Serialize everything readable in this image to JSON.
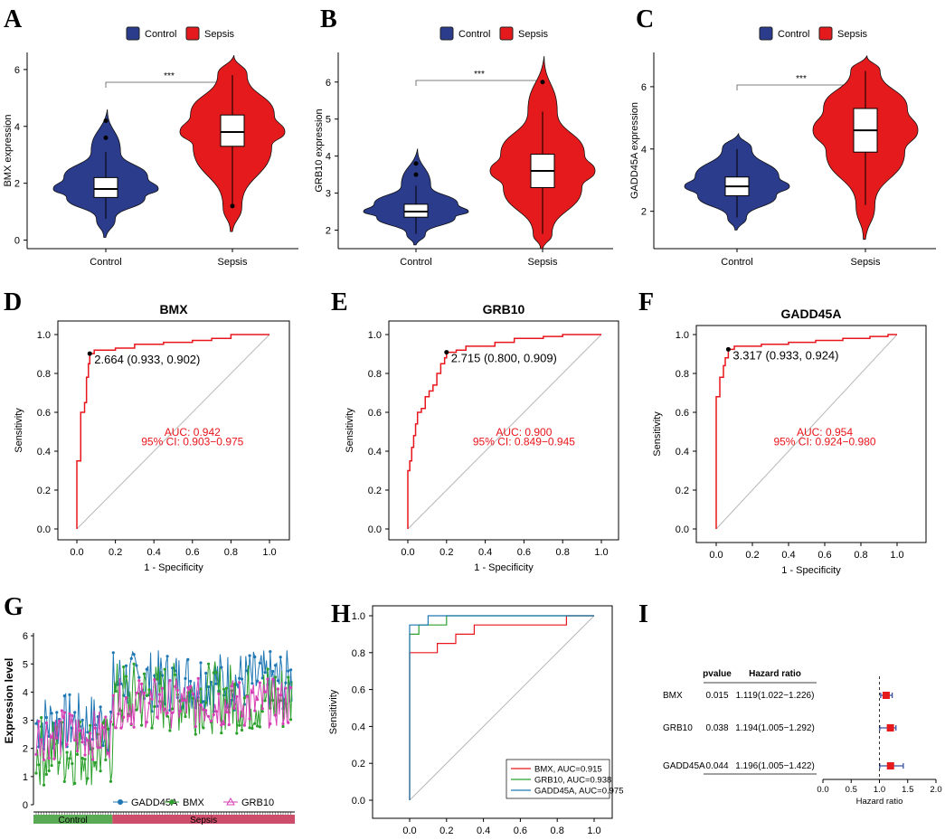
{
  "colors": {
    "control": "#2b3c8c",
    "sepsis": "#e41a1c",
    "roc": "#e8161c",
    "diag": "#b8b8b8",
    "green": "#2ca02c",
    "blue": "#1f77b4",
    "pink": "#d63fb4",
    "ctrlbar": "#5aaa55",
    "sepbar": "#cc4e6a"
  },
  "panels": [
    "A",
    "B",
    "C",
    "D",
    "E",
    "F",
    "G",
    "H",
    "I"
  ],
  "violin": [
    {
      "ylabel": "BMX expression",
      "groups": [
        "Control",
        "Sepsis"
      ],
      "legend": [
        "Control",
        "Sepsis"
      ],
      "sig": "***",
      "yticks": [
        0,
        2,
        4,
        6
      ],
      "ymin": -0.3,
      "ymax": 6.6,
      "control": {
        "min": 0.1,
        "q1": 1.5,
        "median": 1.8,
        "q3": 2.2,
        "whislo": 0.75,
        "whishi": 3.1,
        "max": 4.6,
        "outliers": [
          3.6,
          4.2
        ]
      },
      "sepsis": {
        "min": 0.3,
        "q1": 3.3,
        "median": 3.8,
        "q3": 4.4,
        "whislo": 1.2,
        "whishi": 5.8,
        "max": 6.5,
        "outliers": [
          1.2
        ]
      }
    },
    {
      "ylabel": "GRB10 expression",
      "groups": [
        "Control",
        "Sepsis"
      ],
      "legend": [
        "Control",
        "Sepsis"
      ],
      "sig": "***",
      "yticks": [
        2,
        3,
        4,
        5,
        6
      ],
      "ymin": 1.5,
      "ymax": 6.8,
      "control": {
        "min": 1.6,
        "q1": 2.35,
        "median": 2.5,
        "q3": 2.7,
        "whislo": 1.9,
        "whishi": 3.2,
        "max": 4.2,
        "outliers": [
          3.5,
          3.8
        ]
      },
      "sepsis": {
        "min": 1.5,
        "q1": 3.15,
        "median": 3.6,
        "q3": 4.05,
        "whislo": 1.9,
        "whishi": 5.2,
        "max": 6.7,
        "outliers": [
          6.0
        ]
      }
    },
    {
      "ylabel": "GADD45A expression",
      "groups": [
        "Control",
        "Sepsis"
      ],
      "legend": [
        "Control",
        "Sepsis"
      ],
      "sig": "***",
      "yticks": [
        2,
        4,
        6
      ],
      "ymin": 0.8,
      "ymax": 7.1,
      "control": {
        "min": 1.4,
        "q1": 2.5,
        "median": 2.8,
        "q3": 3.1,
        "whislo": 1.8,
        "whishi": 4.0,
        "max": 4.5,
        "outliers": []
      },
      "sepsis": {
        "min": 1.1,
        "q1": 3.9,
        "median": 4.6,
        "q3": 5.3,
        "whislo": 2.2,
        "whishi": 6.5,
        "max": 7.0,
        "outliers": []
      }
    }
  ],
  "roc": [
    {
      "title": "BMX",
      "xlabel": "1 - Specificity",
      "ylabel": "Sensitivity",
      "ticks": [
        "0.0",
        "0.2",
        "0.4",
        "0.6",
        "0.8",
        "1.0"
      ],
      "point": {
        "fpr": 0.067,
        "tpr": 0.902,
        "label": "2.664 (0.933, 0.902)"
      },
      "auc": "AUC: 0.942",
      "ci": "95% CI: 0.903−0.975",
      "curve": [
        [
          0,
          0
        ],
        [
          0,
          0.35
        ],
        [
          0.02,
          0.35
        ],
        [
          0.02,
          0.6
        ],
        [
          0.04,
          0.6
        ],
        [
          0.04,
          0.65
        ],
        [
          0.05,
          0.65
        ],
        [
          0.05,
          0.78
        ],
        [
          0.06,
          0.78
        ],
        [
          0.06,
          0.85
        ],
        [
          0.067,
          0.85
        ],
        [
          0.067,
          0.902
        ],
        [
          0.09,
          0.902
        ],
        [
          0.09,
          0.92
        ],
        [
          0.2,
          0.92
        ],
        [
          0.2,
          0.93
        ],
        [
          0.3,
          0.93
        ],
        [
          0.3,
          0.95
        ],
        [
          0.45,
          0.95
        ],
        [
          0.45,
          0.96
        ],
        [
          0.6,
          0.96
        ],
        [
          0.6,
          0.97
        ],
        [
          0.7,
          0.97
        ],
        [
          0.7,
          0.98
        ],
        [
          0.8,
          0.98
        ],
        [
          0.8,
          1.0
        ],
        [
          1.0,
          1.0
        ]
      ]
    },
    {
      "title": "GRB10",
      "xlabel": "1 - Specificity",
      "ylabel": "Sensitivity",
      "ticks": [
        "0.0",
        "0.2",
        "0.4",
        "0.6",
        "0.8",
        "1.0"
      ],
      "point": {
        "fpr": 0.2,
        "tpr": 0.909,
        "label": "2.715 (0.800, 0.909)"
      },
      "auc": "AUC: 0.900",
      "ci": "95% CI: 0.849−0.945",
      "curve": [
        [
          0,
          0
        ],
        [
          0,
          0.3
        ],
        [
          0.01,
          0.3
        ],
        [
          0.01,
          0.35
        ],
        [
          0.02,
          0.35
        ],
        [
          0.02,
          0.42
        ],
        [
          0.03,
          0.42
        ],
        [
          0.03,
          0.48
        ],
        [
          0.04,
          0.48
        ],
        [
          0.04,
          0.54
        ],
        [
          0.05,
          0.54
        ],
        [
          0.05,
          0.6
        ],
        [
          0.07,
          0.6
        ],
        [
          0.07,
          0.62
        ],
        [
          0.09,
          0.62
        ],
        [
          0.09,
          0.68
        ],
        [
          0.11,
          0.68
        ],
        [
          0.11,
          0.71
        ],
        [
          0.13,
          0.71
        ],
        [
          0.13,
          0.74
        ],
        [
          0.15,
          0.74
        ],
        [
          0.15,
          0.8
        ],
        [
          0.17,
          0.8
        ],
        [
          0.17,
          0.85
        ],
        [
          0.19,
          0.85
        ],
        [
          0.19,
          0.88
        ],
        [
          0.2,
          0.88
        ],
        [
          0.2,
          0.909
        ],
        [
          0.25,
          0.909
        ],
        [
          0.25,
          0.92
        ],
        [
          0.3,
          0.92
        ],
        [
          0.3,
          0.94
        ],
        [
          0.45,
          0.94
        ],
        [
          0.45,
          0.96
        ],
        [
          0.55,
          0.96
        ],
        [
          0.55,
          0.98
        ],
        [
          0.7,
          0.98
        ],
        [
          0.7,
          0.99
        ],
        [
          0.8,
          0.99
        ],
        [
          0.8,
          1.0
        ],
        [
          1.0,
          1.0
        ]
      ]
    },
    {
      "title": "GADD45A",
      "xlabel": "1 - Specificity",
      "ylabel": "Sensitivity",
      "ticks": [
        "0.0",
        "0.2",
        "0.4",
        "0.6",
        "0.8",
        "1.0"
      ],
      "point": {
        "fpr": 0.067,
        "tpr": 0.924,
        "label": "3.317 (0.933, 0.924)"
      },
      "auc": "AUC: 0.954",
      "ci": "95% CI: 0.924−0.980",
      "curve": [
        [
          0,
          0
        ],
        [
          0,
          0.68
        ],
        [
          0.02,
          0.68
        ],
        [
          0.02,
          0.78
        ],
        [
          0.04,
          0.78
        ],
        [
          0.04,
          0.84
        ],
        [
          0.05,
          0.84
        ],
        [
          0.05,
          0.88
        ],
        [
          0.067,
          0.88
        ],
        [
          0.067,
          0.924
        ],
        [
          0.1,
          0.924
        ],
        [
          0.1,
          0.94
        ],
        [
          0.25,
          0.94
        ],
        [
          0.25,
          0.95
        ],
        [
          0.4,
          0.95
        ],
        [
          0.4,
          0.96
        ],
        [
          0.55,
          0.96
        ],
        [
          0.55,
          0.97
        ],
        [
          0.7,
          0.97
        ],
        [
          0.7,
          0.98
        ],
        [
          0.85,
          0.98
        ],
        [
          0.85,
          0.99
        ],
        [
          0.95,
          0.99
        ],
        [
          0.95,
          1.0
        ],
        [
          1.0,
          1.0
        ]
      ]
    }
  ],
  "expr": {
    "ylabel": "Expression level",
    "yticks": [
      0,
      1,
      2,
      3,
      4,
      5,
      6
    ],
    "ymin": 0,
    "ymax": 6.1,
    "legend": [
      "GADD45A",
      "BMX",
      "GRB10"
    ],
    "groups": [
      "Control",
      "Sepsis"
    ],
    "n_control": 60,
    "n_total": 200
  },
  "combined": {
    "xlabel": "1 - Specificity",
    "ylabel": "Sensitivity",
    "ticks": [
      "0.0",
      "0.2",
      "0.4",
      "0.6",
      "0.8",
      "1.0"
    ],
    "legend": [
      "BMX, AUC=0.915",
      "GRB10, AUC=0.938",
      "GADD45A, AUC=0.975"
    ],
    "bmx": [
      [
        0,
        0
      ],
      [
        0,
        0.8
      ],
      [
        0.15,
        0.8
      ],
      [
        0.15,
        0.85
      ],
      [
        0.25,
        0.85
      ],
      [
        0.25,
        0.9
      ],
      [
        0.35,
        0.9
      ],
      [
        0.35,
        0.95
      ],
      [
        0.85,
        0.95
      ],
      [
        0.85,
        1.0
      ],
      [
        1,
        1
      ]
    ],
    "grb10": [
      [
        0,
        0
      ],
      [
        0,
        0.9
      ],
      [
        0.05,
        0.9
      ],
      [
        0.05,
        0.95
      ],
      [
        0.2,
        0.95
      ],
      [
        0.2,
        1.0
      ],
      [
        1,
        1
      ]
    ],
    "gadd45a": [
      [
        0,
        0
      ],
      [
        0,
        0.95
      ],
      [
        0.1,
        0.95
      ],
      [
        0.1,
        1.0
      ],
      [
        1,
        1
      ]
    ]
  },
  "forest": {
    "col_p": "pvalue",
    "col_hr": "Hazard ratio",
    "xlabel": "Hazard ratio",
    "ticks": [
      "0.0",
      "0.5",
      "1.0",
      "1.5",
      "2.0"
    ],
    "rows": [
      {
        "gene": "BMX",
        "p": "0.015",
        "hr_text": "1.119(1.022−1.226)",
        "hr": 1.119,
        "lo": 1.022,
        "hi": 1.226
      },
      {
        "gene": "GRB10",
        "p": "0.038",
        "hr_text": "1.194(1.005−1.292)",
        "hr": 1.194,
        "lo": 1.005,
        "hi": 1.292
      },
      {
        "gene": "GADD45A",
        "p": "0.044",
        "hr_text": "1.196(1.005−1.422)",
        "hr": 1.196,
        "lo": 1.005,
        "hi": 1.422
      }
    ]
  }
}
